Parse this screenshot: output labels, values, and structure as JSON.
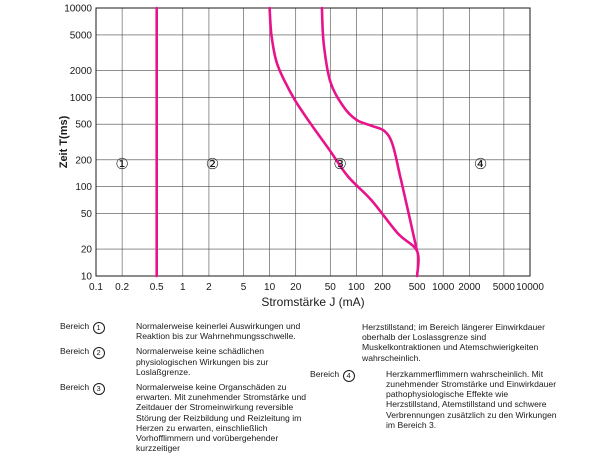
{
  "chart_data": {
    "type": "line",
    "title": "",
    "xlabel": "Stromstärke J (mA)",
    "ylabel": "Zeit T(ms)",
    "xscale": "log",
    "yscale": "log",
    "xlim": [
      0.1,
      10000
    ],
    "ylim": [
      10,
      10000
    ],
    "grid": true,
    "x_ticks": [
      0.1,
      0.2,
      0.5,
      1,
      2,
      5,
      10,
      20,
      50,
      100,
      200,
      500,
      1000,
      2000,
      5000,
      10000
    ],
    "x_tick_labels": [
      "0.1",
      "0.2",
      "0.5",
      "1",
      "2",
      "5",
      "10",
      "20",
      "50",
      "100",
      "200",
      "500",
      "1000",
      "2000",
      "5000",
      "10000"
    ],
    "y_ticks": [
      10,
      20,
      50,
      100,
      200,
      500,
      1000,
      2000,
      5000,
      10000
    ],
    "y_tick_labels": [
      "10",
      "20",
      "50",
      "100",
      "200",
      "500",
      "1000",
      "2000",
      "5000",
      "10000"
    ],
    "line_color": "#e8138c",
    "series": [
      {
        "points": [
          [
            0.5,
            10
          ],
          [
            0.5,
            10000
          ]
        ]
      },
      {
        "points": [
          [
            10,
            10000
          ],
          [
            10.5,
            5000
          ],
          [
            12,
            2500
          ],
          [
            15,
            1500
          ],
          [
            20,
            900
          ],
          [
            30,
            500
          ],
          [
            50,
            250
          ],
          [
            80,
            130
          ],
          [
            150,
            70
          ],
          [
            300,
            30
          ],
          [
            500,
            19
          ],
          [
            500,
            10
          ]
        ]
      },
      {
        "points": [
          [
            40,
            10000
          ],
          [
            42,
            4000
          ],
          [
            50,
            1500
          ],
          [
            70,
            800
          ],
          [
            100,
            560
          ],
          [
            150,
            480
          ],
          [
            210,
            420
          ],
          [
            260,
            300
          ],
          [
            320,
            130
          ],
          [
            400,
            50
          ],
          [
            470,
            25
          ],
          [
            500,
            19
          ]
        ]
      }
    ],
    "annotations": [
      {
        "label": "①",
        "x": 0.2,
        "y": 180
      },
      {
        "label": "②",
        "x": 2.2,
        "y": 180
      },
      {
        "label": "③",
        "x": 65,
        "y": 180
      },
      {
        "label": "④",
        "x": 2700,
        "y": 180
      }
    ]
  },
  "legend": {
    "prefix": "Bereich",
    "entries": [
      {
        "number": "1",
        "text": "Normalerweise keinerlei Auswirkungen und Reaktion bis zur Wahrnehmungsschwelle."
      },
      {
        "number": "2",
        "text": "Normalerweise keine schädlichen physiologischen Wirkungen bis zur Loslaßgrenze."
      },
      {
        "number": "3",
        "text": "Normalerweise keine Organschäden zu erwarten. Mit zunehmender Stromstärke und Zeitdauer der Stromeinwirkung reversible Störung der Reizbildung und Reizleitung im Herzen zu erwarten, einschließlich Vorhofflimmern und vorübergehender kurzzeitiger"
      },
      {
        "number": "4",
        "text": "Herzkammerflimmern wahrscheinlich. Mit zunehmender Stromstärke und Einwirkdauer pathophysiologische Effekte wie Herzstillstand, Atemstillstand und schwere Verbrennungen zusätzlich zu den Wirkungen im Bereich 3."
      }
    ],
    "continuation": "Herzstillstand; im Bereich längerer Einwirkdauer oberhalb der Loslassgrenze sind Muskelkontraktionen und Atemschwierigkeiten wahrscheinlich."
  }
}
